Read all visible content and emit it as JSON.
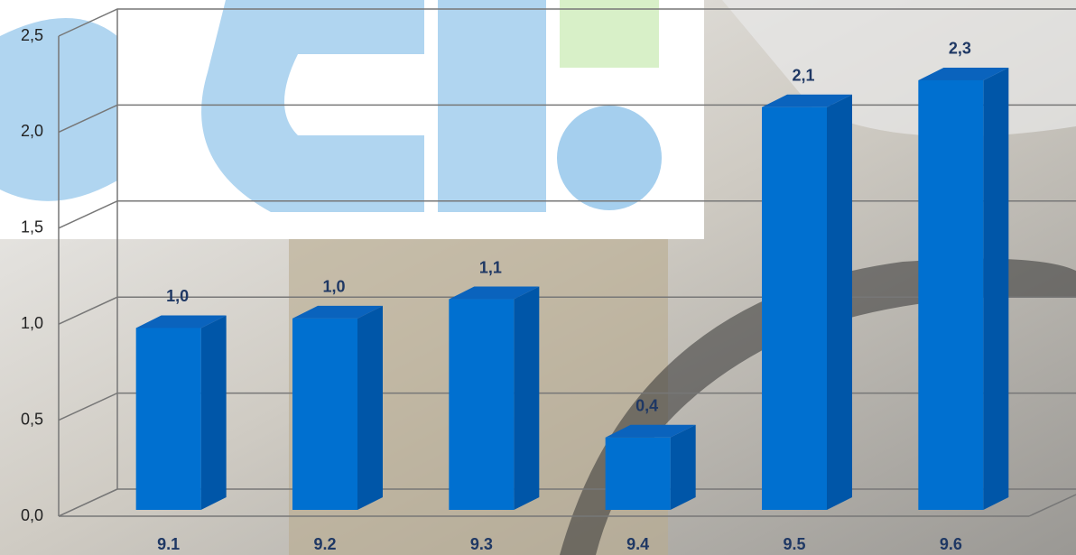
{
  "chart_data": {
    "type": "bar3d",
    "categories": [
      "9.1",
      "9.2",
      "9.3",
      "9.4",
      "9.5",
      "9.6"
    ],
    "values": [
      0.98,
      1.03,
      1.13,
      0.41,
      2.13,
      2.27
    ],
    "value_labels": [
      "1,0",
      "1,0",
      "1,1",
      "0,4",
      "2,1",
      "2,3"
    ],
    "color": "#0070d0",
    "ylim": [
      0,
      2.5
    ],
    "yticks": [
      {
        "value": 0,
        "label": "0,0"
      },
      {
        "value": 0.5,
        "label": "0,5"
      },
      {
        "value": 1,
        "label": "1,0"
      },
      {
        "value": 1.5,
        "label": "1,5"
      },
      {
        "value": 2,
        "label": "2,0"
      },
      {
        "value": 2.5,
        "label": "2,5"
      }
    ],
    "grid": true
  }
}
